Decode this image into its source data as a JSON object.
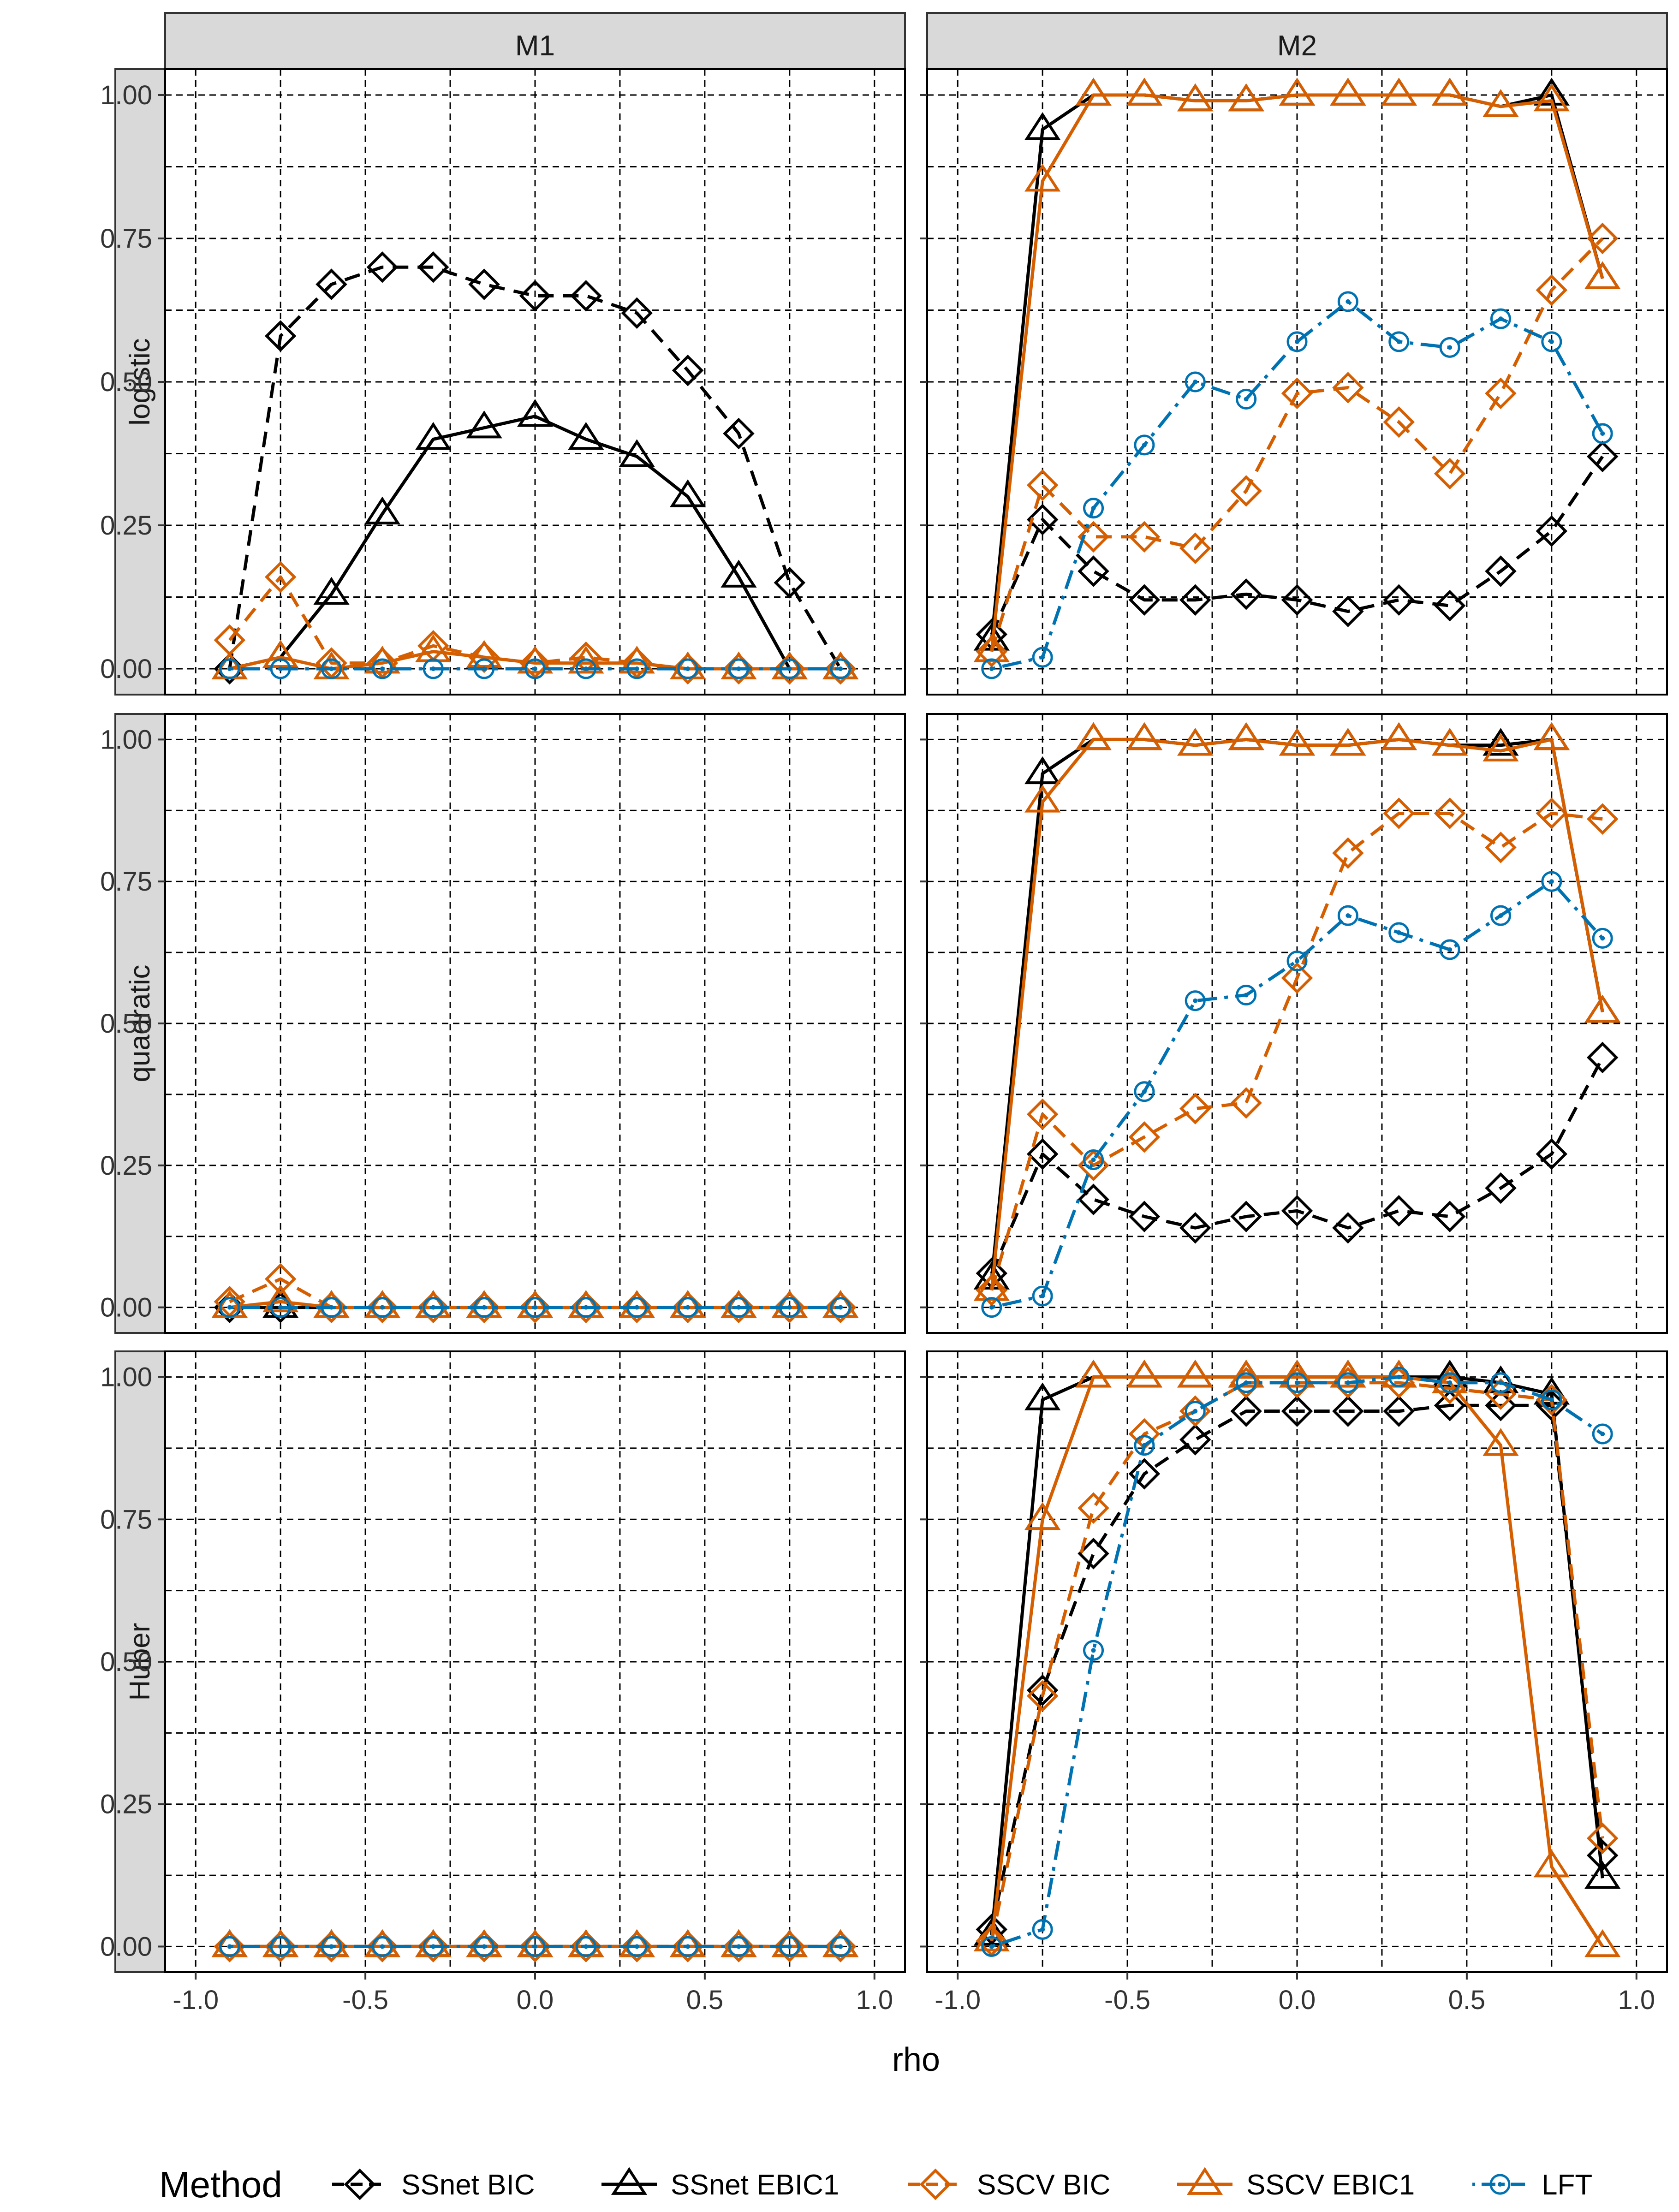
{
  "chart_data": {
    "type": "line",
    "facet_rows": [
      "logistic",
      "quadratic",
      "Huber"
    ],
    "facet_cols": [
      "M1",
      "M2"
    ],
    "xlabel": "rho",
    "ylabel": "",
    "xlim": [
      -1.0,
      1.0
    ],
    "ylim": [
      0.0,
      1.0
    ],
    "x_ticks": [
      -1.0,
      -0.5,
      0.0,
      0.5,
      1.0
    ],
    "x_tick_labels": [
      "-1.0",
      "-0.5",
      "0.0",
      "0.5",
      "1.0"
    ],
    "y_ticks": [
      0.0,
      0.25,
      0.5,
      0.75,
      1.0
    ],
    "y_tick_labels": [
      "0.00",
      "0.25",
      "0.50",
      "0.75",
      "1.00"
    ],
    "grid": true,
    "x": [
      -0.9,
      -0.75,
      -0.6,
      -0.45,
      -0.3,
      -0.15,
      0.0,
      0.15,
      0.3,
      0.45,
      0.6,
      0.75,
      0.9
    ],
    "legend": {
      "title": "Method",
      "position": "bottom",
      "entries": [
        "SSnet BIC",
        "SSnet EBIC1",
        "SSCV BIC",
        "SSCV EBIC1",
        "LFT"
      ]
    },
    "series_styles": [
      {
        "name": "SSnet BIC",
        "color": "#000000",
        "marker": "diamond",
        "line": "dashed"
      },
      {
        "name": "SSnet EBIC1",
        "color": "#000000",
        "marker": "triangle",
        "line": "solid"
      },
      {
        "name": "SSCV BIC",
        "color": "#D55E00",
        "marker": "diamond",
        "line": "dashed"
      },
      {
        "name": "SSCV EBIC1",
        "color": "#D55E00",
        "marker": "triangle",
        "line": "solid"
      },
      {
        "name": "LFT",
        "color": "#0072B2",
        "marker": "circle-dot",
        "line": "dotdash"
      }
    ],
    "panels": [
      {
        "row": "logistic",
        "col": "M1",
        "series": [
          {
            "name": "SSnet BIC",
            "values": [
              0.0,
              0.58,
              0.67,
              0.7,
              0.7,
              0.67,
              0.65,
              0.65,
              0.62,
              0.52,
              0.41,
              0.15,
              0.0
            ]
          },
          {
            "name": "SSnet EBIC1",
            "values": [
              0.0,
              0.02,
              0.13,
              0.27,
              0.4,
              0.42,
              0.44,
              0.4,
              0.37,
              0.3,
              0.16,
              0.0,
              0.0
            ]
          },
          {
            "name": "SSCV BIC",
            "values": [
              0.05,
              0.16,
              0.01,
              0.01,
              0.04,
              0.02,
              0.01,
              0.02,
              0.01,
              0.0,
              0.0,
              0.0,
              0.0
            ]
          },
          {
            "name": "SSCV EBIC1",
            "values": [
              0.0,
              0.02,
              0.0,
              0.01,
              0.03,
              0.02,
              0.01,
              0.01,
              0.01,
              0.0,
              0.0,
              0.0,
              0.0
            ]
          },
          {
            "name": "LFT",
            "values": [
              0.0,
              0.0,
              0.0,
              0.0,
              0.0,
              0.0,
              0.0,
              0.0,
              0.0,
              0.0,
              0.0,
              0.0,
              0.0
            ]
          }
        ]
      },
      {
        "row": "logistic",
        "col": "M2",
        "series": [
          {
            "name": "SSnet BIC",
            "values": [
              0.06,
              0.26,
              0.17,
              0.12,
              0.12,
              0.13,
              0.12,
              0.1,
              0.12,
              0.11,
              0.17,
              0.24,
              0.37
            ]
          },
          {
            "name": "SSnet EBIC1",
            "values": [
              0.05,
              0.94,
              1.0,
              1.0,
              0.99,
              0.99,
              1.0,
              1.0,
              1.0,
              1.0,
              0.98,
              1.0,
              0.68
            ]
          },
          {
            "name": "SSCV BIC",
            "values": [
              0.03,
              0.32,
              0.23,
              0.23,
              0.21,
              0.31,
              0.48,
              0.49,
              0.43,
              0.34,
              0.48,
              0.66,
              0.75
            ]
          },
          {
            "name": "SSCV EBIC1",
            "values": [
              0.03,
              0.85,
              1.0,
              1.0,
              0.99,
              0.99,
              1.0,
              1.0,
              1.0,
              1.0,
              0.98,
              0.99,
              0.68
            ]
          },
          {
            "name": "LFT",
            "values": [
              0.0,
              0.02,
              0.28,
              0.39,
              0.5,
              0.47,
              0.57,
              0.64,
              0.57,
              0.56,
              0.61,
              0.57,
              0.41
            ]
          }
        ]
      },
      {
        "row": "quadratic",
        "col": "M1",
        "series": [
          {
            "name": "SSnet BIC",
            "values": [
              0.0,
              0.0,
              0.0,
              0.0,
              0.0,
              0.0,
              0.0,
              0.0,
              0.0,
              0.0,
              0.0,
              0.0,
              0.0
            ]
          },
          {
            "name": "SSnet EBIC1",
            "values": [
              0.0,
              0.0,
              0.0,
              0.0,
              0.0,
              0.0,
              0.0,
              0.0,
              0.0,
              0.0,
              0.0,
              0.0,
              0.0
            ]
          },
          {
            "name": "SSCV BIC",
            "values": [
              0.01,
              0.05,
              0.0,
              0.0,
              0.0,
              0.0,
              0.0,
              0.0,
              0.0,
              0.0,
              0.0,
              0.0,
              0.0
            ]
          },
          {
            "name": "SSCV EBIC1",
            "values": [
              0.0,
              0.01,
              0.0,
              0.0,
              0.0,
              0.0,
              0.0,
              0.0,
              0.0,
              0.0,
              0.0,
              0.0,
              0.0
            ]
          },
          {
            "name": "LFT",
            "values": [
              0.0,
              0.0,
              0.0,
              0.0,
              0.0,
              0.0,
              0.0,
              0.0,
              0.0,
              0.0,
              0.0,
              0.0,
              0.0
            ]
          }
        ]
      },
      {
        "row": "quadratic",
        "col": "M2",
        "series": [
          {
            "name": "SSnet BIC",
            "values": [
              0.06,
              0.27,
              0.19,
              0.16,
              0.14,
              0.16,
              0.17,
              0.14,
              0.17,
              0.16,
              0.21,
              0.27,
              0.44
            ]
          },
          {
            "name": "SSnet EBIC1",
            "values": [
              0.05,
              0.94,
              1.0,
              1.0,
              0.99,
              1.0,
              0.99,
              0.99,
              1.0,
              0.99,
              0.99,
              1.0,
              0.52
            ]
          },
          {
            "name": "SSCV BIC",
            "values": [
              0.03,
              0.34,
              0.25,
              0.3,
              0.35,
              0.36,
              0.58,
              0.8,
              0.87,
              0.87,
              0.81,
              0.87,
              0.86
            ]
          },
          {
            "name": "SSCV EBIC1",
            "values": [
              0.03,
              0.89,
              1.0,
              1.0,
              0.99,
              1.0,
              0.99,
              0.99,
              1.0,
              0.99,
              0.98,
              1.0,
              0.52
            ]
          },
          {
            "name": "LFT",
            "values": [
              0.0,
              0.02,
              0.26,
              0.38,
              0.54,
              0.55,
              0.61,
              0.69,
              0.66,
              0.63,
              0.69,
              0.75,
              0.65
            ]
          }
        ]
      },
      {
        "row": "Huber",
        "col": "M1",
        "series": [
          {
            "name": "SSnet BIC",
            "values": [
              0.0,
              0.0,
              0.0,
              0.0,
              0.0,
              0.0,
              0.0,
              0.0,
              0.0,
              0.0,
              0.0,
              0.0,
              0.0
            ]
          },
          {
            "name": "SSnet EBIC1",
            "values": [
              0.0,
              0.0,
              0.0,
              0.0,
              0.0,
              0.0,
              0.0,
              0.0,
              0.0,
              0.0,
              0.0,
              0.0,
              0.0
            ]
          },
          {
            "name": "SSCV BIC",
            "values": [
              0.0,
              0.0,
              0.0,
              0.0,
              0.0,
              0.0,
              0.0,
              0.0,
              0.0,
              0.0,
              0.0,
              0.0,
              0.0
            ]
          },
          {
            "name": "SSCV EBIC1",
            "values": [
              0.0,
              0.0,
              0.0,
              0.0,
              0.0,
              0.0,
              0.0,
              0.0,
              0.0,
              0.0,
              0.0,
              0.0,
              0.0
            ]
          },
          {
            "name": "LFT",
            "values": [
              0.0,
              0.0,
              0.0,
              0.0,
              0.0,
              0.0,
              0.0,
              0.0,
              0.0,
              0.0,
              0.0,
              0.0,
              0.0
            ]
          }
        ]
      },
      {
        "row": "Huber",
        "col": "M2",
        "series": [
          {
            "name": "SSnet BIC",
            "values": [
              0.03,
              0.45,
              0.69,
              0.83,
              0.89,
              0.94,
              0.94,
              0.94,
              0.94,
              0.95,
              0.95,
              0.95,
              0.16
            ]
          },
          {
            "name": "SSnet EBIC1",
            "values": [
              0.02,
              0.96,
              1.0,
              1.0,
              1.0,
              1.0,
              1.0,
              1.0,
              1.0,
              1.0,
              0.99,
              0.97,
              0.12
            ]
          },
          {
            "name": "SSCV BIC",
            "values": [
              0.01,
              0.44,
              0.77,
              0.9,
              0.94,
              0.99,
              0.99,
              0.99,
              0.99,
              0.98,
              0.97,
              0.96,
              0.19
            ]
          },
          {
            "name": "SSCV EBIC1",
            "values": [
              0.01,
              0.75,
              1.0,
              1.0,
              1.0,
              1.0,
              1.0,
              1.0,
              1.0,
              0.99,
              0.88,
              0.14,
              0.0
            ]
          },
          {
            "name": "LFT",
            "values": [
              0.0,
              0.03,
              0.52,
              0.88,
              0.94,
              0.99,
              0.99,
              0.99,
              1.0,
              0.99,
              0.99,
              0.96,
              0.9
            ]
          }
        ]
      }
    ]
  }
}
